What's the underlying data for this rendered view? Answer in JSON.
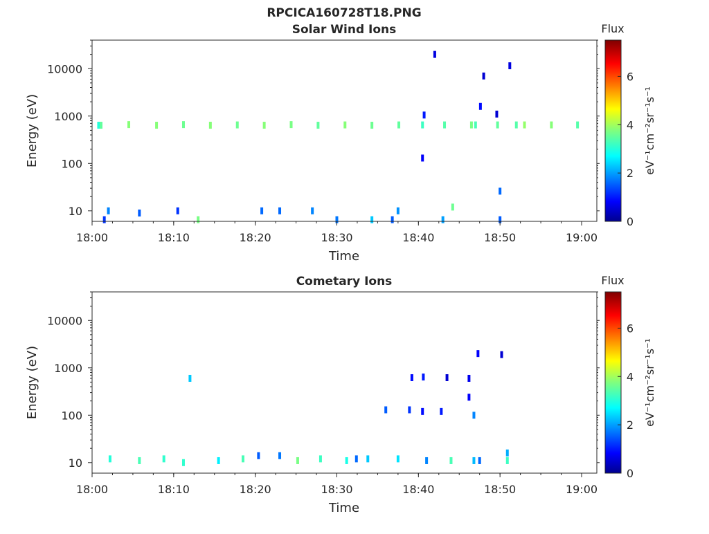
{
  "figure": {
    "title": "RPCICA160728T18.PNG"
  },
  "chart_data": [
    {
      "type": "heatmap",
      "title": "Solar Wind Ions",
      "xlabel": "Time",
      "ylabel": "Energy (eV)",
      "x_ticks": [
        "18:00",
        "18:10",
        "18:20",
        "18:30",
        "18:40",
        "18:50",
        "19:00"
      ],
      "x_range_min": [
        0,
        60
      ],
      "y_scale": "log",
      "y_ticks": [
        "10",
        "100",
        "1000",
        "10000"
      ],
      "y_range": [
        6,
        40000
      ],
      "colorbar": {
        "label": "Flux",
        "units": "eV⁻¹cm⁻²sr⁻¹s⁻¹",
        "ticks": [
          "0",
          "2",
          "4",
          "6"
        ],
        "range": [
          0,
          7.5
        ],
        "colormap": "jet"
      },
      "cells": [
        [
          0.8,
          640,
          3
        ],
        [
          1.1,
          640,
          3.5
        ],
        [
          4.5,
          660,
          3.8
        ],
        [
          7.9,
          640,
          3.8
        ],
        [
          11.2,
          660,
          3.6
        ],
        [
          14.5,
          640,
          3.8
        ],
        [
          17.8,
          650,
          3.6
        ],
        [
          21.1,
          640,
          3.8
        ],
        [
          24.4,
          660,
          3.7
        ],
        [
          27.7,
          640,
          3.5
        ],
        [
          31.0,
          650,
          3.8
        ],
        [
          34.3,
          640,
          3.6
        ],
        [
          37.6,
          650,
          3.5
        ],
        [
          40.5,
          650,
          3.2
        ],
        [
          43.2,
          650,
          3.4
        ],
        [
          46.5,
          650,
          3.7
        ],
        [
          49.7,
          650,
          3.5
        ],
        [
          53.0,
          650,
          3.9
        ],
        [
          56.3,
          650,
          3.8
        ],
        [
          59.5,
          650,
          3.4
        ],
        [
          52.0,
          650,
          3.4
        ],
        [
          47.0,
          650,
          3.3
        ],
        [
          44.2,
          12,
          3.6
        ],
        [
          50.0,
          26,
          1.6
        ],
        [
          50.0,
          6.5,
          1.5
        ],
        [
          2.0,
          10,
          1.8
        ],
        [
          5.8,
          9,
          1.5
        ],
        [
          13.0,
          6.5,
          3.7
        ],
        [
          23.0,
          10,
          1.6
        ],
        [
          27.0,
          10,
          1.8
        ],
        [
          34.3,
          6.5,
          2.3
        ],
        [
          37.5,
          10,
          1.9
        ],
        [
          1.5,
          6.5,
          1.2
        ],
        [
          10.5,
          10,
          1.2
        ],
        [
          20.8,
          10,
          1.6
        ],
        [
          30.0,
          6.5,
          1.7
        ],
        [
          36.8,
          6.5,
          1.5
        ],
        [
          47.6,
          1600,
          0.9
        ],
        [
          49.6,
          1100,
          0.5
        ],
        [
          51.2,
          11500,
          0.6
        ],
        [
          43.0,
          6.5,
          2.0
        ],
        [
          42.0,
          20000,
          0.6
        ],
        [
          48.0,
          7000,
          0.5
        ],
        [
          40.7,
          1050,
          1.0
        ],
        [
          40.5,
          130,
          0.8
        ]
      ]
    },
    {
      "type": "heatmap",
      "title": "Cometary Ions",
      "xlabel": "Time",
      "ylabel": "Energy (eV)",
      "x_ticks": [
        "18:00",
        "18:10",
        "18:20",
        "18:30",
        "18:40",
        "18:50",
        "19:00"
      ],
      "x_range_min": [
        0,
        60
      ],
      "y_scale": "log",
      "y_ticks": [
        "10",
        "100",
        "1000",
        "10000"
      ],
      "y_range": [
        6,
        40000
      ],
      "colorbar": {
        "label": "Flux",
        "units": "eV⁻¹cm⁻²sr⁻¹s⁻¹",
        "ticks": [
          "0",
          "2",
          "4",
          "6"
        ],
        "range": [
          0,
          7.5
        ],
        "colormap": "jet"
      },
      "cells": [
        [
          2.2,
          12,
          3.0
        ],
        [
          5.8,
          11,
          3.3
        ],
        [
          8.8,
          12,
          3.1
        ],
        [
          11.2,
          10,
          3.1
        ],
        [
          15.5,
          11,
          2.6
        ],
        [
          18.5,
          12,
          3.3
        ],
        [
          25.2,
          11,
          3.7
        ],
        [
          28.0,
          12,
          3.2
        ],
        [
          31.2,
          11,
          2.9
        ],
        [
          37.5,
          12,
          2.5
        ],
        [
          41.0,
          11,
          1.8
        ],
        [
          44.0,
          11,
          3.3
        ],
        [
          46.8,
          11,
          2.2
        ],
        [
          47.5,
          11,
          1.6
        ],
        [
          50.9,
          11,
          3.2
        ],
        [
          50.9,
          16,
          2.1
        ],
        [
          32.4,
          12,
          1.6
        ],
        [
          33.8,
          12,
          2.3
        ],
        [
          20.4,
          14,
          1.5
        ],
        [
          23.0,
          14,
          1.7
        ],
        [
          39.2,
          620,
          0.9
        ],
        [
          40.6,
          640,
          1.0
        ],
        [
          43.5,
          620,
          0.5
        ],
        [
          46.2,
          600,
          0.7
        ],
        [
          46.2,
          240,
          0.8
        ],
        [
          47.3,
          2000,
          0.8
        ],
        [
          50.2,
          1900,
          0.5
        ],
        [
          40.5,
          120,
          0.9
        ],
        [
          42.8,
          120,
          1.0
        ],
        [
          46.8,
          100,
          1.8
        ],
        [
          38.9,
          130,
          1.2
        ],
        [
          36.0,
          130,
          1.5
        ],
        [
          12.0,
          600,
          2.3
        ]
      ]
    }
  ]
}
